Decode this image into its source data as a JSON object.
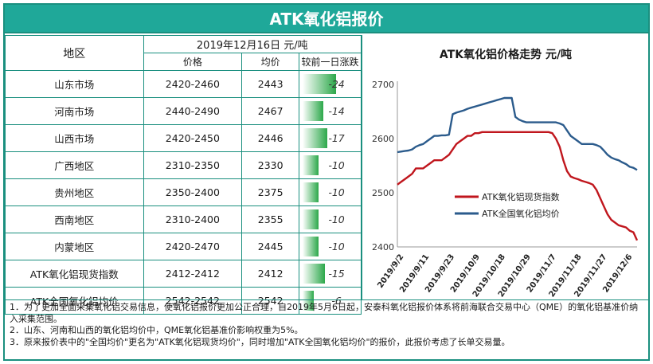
{
  "header": {
    "title": "ATK氧化铝报价"
  },
  "table": {
    "region_header": "地区",
    "date_header": "2019年12月16日  元/吨",
    "col_price": "价格",
    "col_avg": "均价",
    "col_change": "较前一日涨跌",
    "rows": [
      {
        "region": "山东市场",
        "range": "2420-2460",
        "avg": "2443",
        "change": "-24",
        "change_value": -24
      },
      {
        "region": "河南市场",
        "range": "2440-2490",
        "avg": "2467",
        "change": "-14",
        "change_value": -14
      },
      {
        "region": "山西市场",
        "range": "2420-2450",
        "avg": "2446",
        "change": "-17",
        "change_value": -17
      },
      {
        "region": "广西地区",
        "range": "2310-2350",
        "avg": "2330",
        "change": "-10",
        "change_value": -10
      },
      {
        "region": "贵州地区",
        "range": "2350-2400",
        "avg": "2375",
        "change": "-10",
        "change_value": -10
      },
      {
        "region": "西南地区",
        "range": "2310-2400",
        "avg": "2355",
        "change": "-10",
        "change_value": -10
      },
      {
        "region": "内蒙地区",
        "range": "2420-2470",
        "avg": "2445",
        "change": "-10",
        "change_value": -10
      },
      {
        "region": "ATK氧化铝现货指数",
        "range": "2412-2412",
        "avg": "2412",
        "change": "-15",
        "change_value": -15
      },
      {
        "region": "ATK全国氧化铝均价",
        "range": "2542-2542",
        "avg": "2542",
        "change": "-6",
        "change_value": -6
      }
    ]
  },
  "chart_data": {
    "type": "line",
    "title": "ATK氧化铝价格走势  元/吨",
    "ylim": [
      2400,
      2700
    ],
    "yticks": [
      "2700",
      "2600",
      "2500",
      "2400"
    ],
    "xticks": [
      "2019/9/2",
      "2019/9/11",
      "2019/9/23",
      "2019/10/9",
      "2019/10/18",
      "2019/10/29",
      "2019/11/7",
      "2019/11/18",
      "2019/11/27",
      "2019/12/6"
    ],
    "legend_position": "right",
    "series": [
      {
        "name": "ATK氧化铝现货指数",
        "color": "#c0161d",
        "values": [
          2515,
          2520,
          2525,
          2530,
          2535,
          2545,
          2545,
          2545,
          2550,
          2555,
          2560,
          2560,
          2560,
          2565,
          2570,
          2580,
          2590,
          2595,
          2600,
          2605,
          2605,
          2610,
          2610,
          2612,
          2612,
          2612,
          2612,
          2612,
          2612,
          2612,
          2612,
          2612,
          2612,
          2612,
          2612,
          2612,
          2612,
          2612,
          2612,
          2612,
          2612,
          2612,
          2610,
          2600,
          2585,
          2560,
          2540,
          2530,
          2527,
          2525,
          2522,
          2520,
          2518,
          2515,
          2505,
          2490,
          2475,
          2460,
          2450,
          2445,
          2440,
          2438,
          2436,
          2430,
          2427,
          2412
        ]
      },
      {
        "name": "ATK全国氧化铝均价",
        "color": "#2b5b8c",
        "values": [
          2575,
          2576,
          2577,
          2578,
          2580,
          2585,
          2588,
          2590,
          2595,
          2600,
          2605,
          2605,
          2606,
          2606,
          2607,
          2645,
          2648,
          2650,
          2652,
          2655,
          2657,
          2659,
          2661,
          2663,
          2665,
          2667,
          2669,
          2671,
          2673,
          2675,
          2675,
          2675,
          2640,
          2635,
          2632,
          2630,
          2630,
          2630,
          2630,
          2630,
          2630,
          2630,
          2630,
          2630,
          2628,
          2625,
          2615,
          2605,
          2600,
          2595,
          2590,
          2590,
          2590,
          2590,
          2588,
          2585,
          2578,
          2570,
          2565,
          2562,
          2560,
          2556,
          2553,
          2548,
          2546,
          2542
        ]
      }
    ]
  },
  "notes": [
    "1．为了更加全面采集氧化铝交易信息，使氧化铝报价更加公正合理，自2019年5月6日起，安泰科氧化铝报价体系将前海联合交易中心（QME）的氧化铝基准价纳入采集范围。",
    "2．山东、河南和山西的氧化铝均价中，QME氧化铝基准价影响权重为5%。",
    "3．原来报价表中的\"全国均价\"更名为\"ATK氧化铝现货均价\"，同时增加\"ATK全国氧化铝均价\"的报价，此报价考虑了长单交易量。"
  ]
}
